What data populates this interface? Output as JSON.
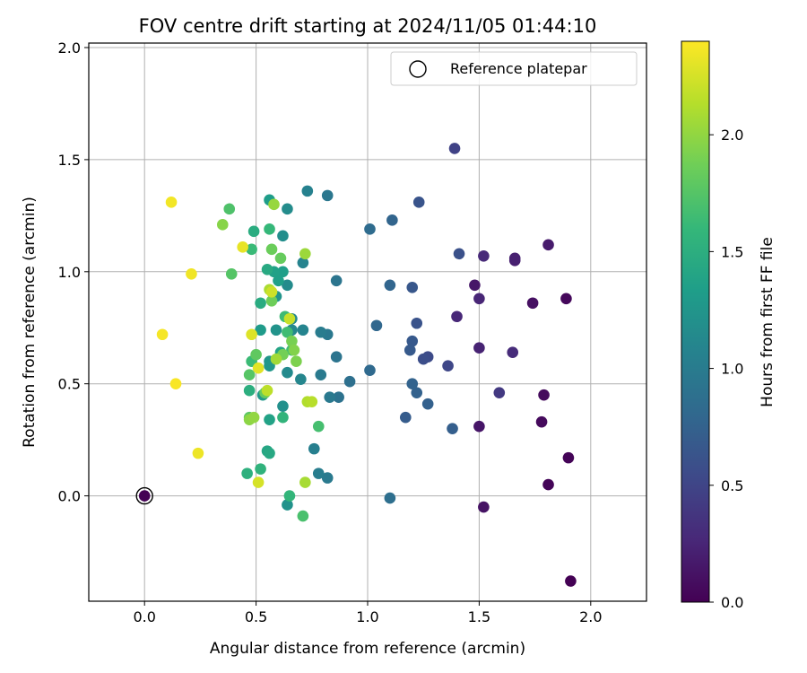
{
  "chart_data": {
    "type": "scatter",
    "title": "FOV centre drift starting at 2024/11/05 01:44:10",
    "xlabel": "Angular distance from reference (arcmin)",
    "ylabel": "Rotation from reference (arcmin)",
    "xlim": [
      -0.25,
      2.25
    ],
    "ylim": [
      -0.47,
      2.02
    ],
    "xticks": [
      "0.0",
      "0.5",
      "1.0",
      "1.5",
      "2.0"
    ],
    "yticks": [
      "0.0",
      "0.5",
      "1.0",
      "1.5",
      "2.0"
    ],
    "grid": true,
    "legend": {
      "placement": "top-right",
      "entries": [
        "Reference platepar"
      ]
    },
    "reference_point": {
      "x": 0.0,
      "y": 0.0
    },
    "colorbar": {
      "label": "Hours from first FF file",
      "colormap": "viridis",
      "range": [
        0.0,
        2.4
      ],
      "ticks": [
        "0.0",
        "0.5",
        "1.0",
        "1.5",
        "2.0"
      ]
    },
    "colormap_stops": [
      "#440154",
      "#482878",
      "#3e4989",
      "#31688e",
      "#26828e",
      "#1f9e89",
      "#35b779",
      "#6ece58",
      "#b5de2b",
      "#fde725"
    ],
    "series": [
      {
        "color_value": "Hours from first FF file",
        "points": [
          [
            0.0,
            0.0,
            0.0
          ],
          [
            1.91,
            -0.38,
            0.0
          ],
          [
            1.9,
            0.17,
            0.02
          ],
          [
            1.81,
            0.05,
            0.03
          ],
          [
            1.89,
            0.88,
            0.05
          ],
          [
            1.78,
            0.33,
            0.06
          ],
          [
            1.79,
            0.45,
            0.07
          ],
          [
            1.74,
            0.86,
            0.1
          ],
          [
            1.52,
            -0.05,
            0.12
          ],
          [
            1.5,
            0.31,
            0.14
          ],
          [
            1.48,
            0.94,
            0.15
          ],
          [
            1.81,
            1.12,
            0.18
          ],
          [
            1.66,
            1.05,
            0.2
          ],
          [
            1.66,
            1.06,
            0.21
          ],
          [
            1.5,
            0.66,
            0.23
          ],
          [
            1.5,
            0.88,
            0.25
          ],
          [
            1.4,
            0.8,
            0.27
          ],
          [
            1.52,
            1.07,
            0.28
          ],
          [
            1.65,
            0.64,
            0.3
          ],
          [
            1.59,
            0.46,
            0.4
          ],
          [
            1.39,
            1.55,
            0.48
          ],
          [
            1.36,
            0.58,
            0.52
          ],
          [
            1.27,
            0.62,
            0.55
          ],
          [
            1.25,
            0.61,
            0.58
          ],
          [
            1.41,
            1.08,
            0.6
          ],
          [
            1.22,
            0.77,
            0.62
          ],
          [
            1.23,
            1.31,
            0.63
          ],
          [
            1.2,
            0.93,
            0.65
          ],
          [
            1.2,
            0.69,
            0.67
          ],
          [
            1.19,
            0.65,
            0.68
          ],
          [
            1.17,
            0.35,
            0.7
          ],
          [
            1.38,
            0.3,
            0.72
          ],
          [
            1.27,
            0.41,
            0.74
          ],
          [
            1.22,
            0.46,
            0.75
          ],
          [
            1.2,
            0.5,
            0.76
          ],
          [
            1.11,
            1.23,
            0.77
          ],
          [
            1.1,
            0.94,
            0.78
          ],
          [
            1.04,
            0.76,
            0.8
          ],
          [
            1.01,
            0.56,
            0.82
          ],
          [
            1.01,
            1.19,
            0.84
          ],
          [
            1.1,
            -0.01,
            0.87
          ],
          [
            0.92,
            0.51,
            0.88
          ],
          [
            0.87,
            0.44,
            0.9
          ],
          [
            0.86,
            0.62,
            0.92
          ],
          [
            0.86,
            0.96,
            0.93
          ],
          [
            0.82,
            1.34,
            0.95
          ],
          [
            0.82,
            0.72,
            0.96
          ],
          [
            0.83,
            0.44,
            0.97
          ],
          [
            0.82,
            0.08,
            0.98
          ],
          [
            0.79,
            0.54,
            0.98
          ],
          [
            0.79,
            0.73,
            1.0
          ],
          [
            0.78,
            0.1,
            1.02
          ],
          [
            0.76,
            0.21,
            1.04
          ],
          [
            0.73,
            1.36,
            1.06
          ],
          [
            0.71,
            1.04,
            1.08
          ],
          [
            0.71,
            0.74,
            1.09
          ],
          [
            0.7,
            0.52,
            1.1
          ],
          [
            0.66,
            0.74,
            1.12
          ],
          [
            0.66,
            0.79,
            1.12
          ],
          [
            0.64,
            0.55,
            1.14
          ],
          [
            0.64,
            0.94,
            1.15
          ],
          [
            0.64,
            1.28,
            1.16
          ],
          [
            0.62,
            1.16,
            1.18
          ],
          [
            0.62,
            0.4,
            1.2
          ],
          [
            0.64,
            -0.04,
            1.22
          ],
          [
            0.59,
            0.74,
            1.23
          ],
          [
            0.59,
            0.89,
            1.24
          ],
          [
            0.56,
            0.6,
            1.26
          ],
          [
            0.56,
            0.58,
            1.27
          ],
          [
            0.53,
            0.45,
            1.28
          ],
          [
            0.52,
            0.74,
            1.3
          ],
          [
            0.56,
            1.32,
            1.32
          ],
          [
            0.62,
            1.0,
            1.34
          ],
          [
            0.6,
            0.96,
            1.35
          ],
          [
            0.58,
            1.0,
            1.36
          ],
          [
            0.56,
            0.34,
            1.38
          ],
          [
            0.61,
            0.64,
            1.4
          ],
          [
            0.55,
            0.2,
            1.42
          ],
          [
            0.56,
            0.19,
            1.44
          ],
          [
            0.55,
            1.01,
            1.45
          ],
          [
            0.52,
            0.86,
            1.47
          ],
          [
            0.49,
            1.18,
            1.48
          ],
          [
            0.47,
            0.47,
            1.5
          ],
          [
            0.46,
            0.1,
            1.52
          ],
          [
            0.52,
            0.12,
            1.55
          ],
          [
            0.62,
            0.35,
            1.56
          ],
          [
            0.65,
            0.0,
            1.58
          ],
          [
            0.56,
            1.19,
            1.6
          ],
          [
            0.48,
            1.1,
            1.62
          ],
          [
            0.48,
            0.6,
            1.63
          ],
          [
            0.63,
            0.8,
            1.64
          ],
          [
            0.64,
            0.73,
            1.65
          ],
          [
            0.66,
            0.65,
            1.66
          ],
          [
            0.78,
            0.31,
            1.68
          ],
          [
            0.71,
            -0.09,
            1.7
          ],
          [
            0.38,
            1.28,
            1.72
          ],
          [
            0.39,
            0.99,
            1.75
          ],
          [
            0.47,
            0.54,
            1.76
          ],
          [
            0.47,
            0.35,
            1.78
          ],
          [
            0.5,
            0.63,
            1.8
          ],
          [
            0.54,
            0.46,
            1.82
          ],
          [
            0.61,
            1.06,
            1.83
          ],
          [
            0.57,
            1.1,
            1.85
          ],
          [
            0.57,
            0.87,
            1.86
          ],
          [
            0.62,
            0.63,
            1.88
          ],
          [
            0.66,
            0.69,
            1.9
          ],
          [
            0.68,
            0.6,
            1.92
          ],
          [
            0.67,
            0.65,
            1.94
          ],
          [
            0.35,
            1.21,
            1.96
          ],
          [
            0.47,
            0.34,
            1.98
          ],
          [
            0.49,
            0.35,
            2.0
          ],
          [
            0.58,
            1.3,
            2.02
          ],
          [
            0.72,
            1.08,
            2.04
          ],
          [
            0.59,
            0.61,
            2.06
          ],
          [
            0.72,
            0.06,
            2.08
          ],
          [
            0.56,
            0.92,
            2.1
          ],
          [
            0.73,
            0.42,
            2.12
          ],
          [
            0.75,
            0.42,
            2.14
          ],
          [
            0.55,
            0.47,
            2.16
          ],
          [
            0.65,
            0.79,
            2.2
          ],
          [
            0.57,
            0.91,
            2.22
          ],
          [
            0.51,
            0.06,
            2.25
          ],
          [
            0.48,
            0.72,
            2.28
          ],
          [
            0.51,
            0.57,
            2.3
          ],
          [
            0.44,
            1.11,
            2.32
          ],
          [
            0.24,
            0.19,
            2.34
          ],
          [
            0.21,
            0.99,
            2.35
          ],
          [
            0.12,
            1.31,
            2.36
          ],
          [
            0.08,
            0.72,
            2.37
          ],
          [
            0.14,
            0.5,
            2.38
          ]
        ]
      }
    ]
  }
}
